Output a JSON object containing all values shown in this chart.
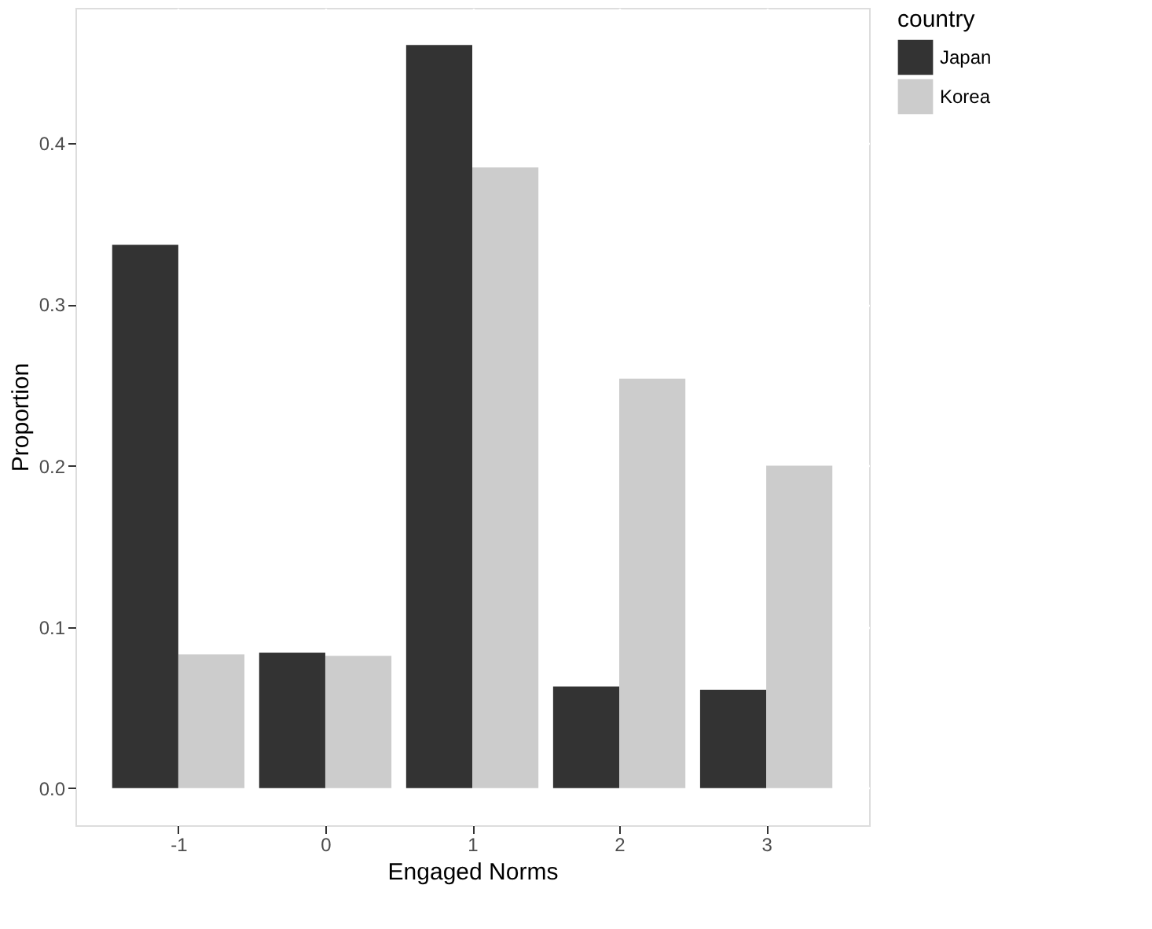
{
  "chart_data": {
    "type": "bar",
    "xlabel": "Engaged Norms",
    "ylabel": "Proportion",
    "legend_title": "country",
    "x": [
      -1,
      0,
      1,
      2,
      3
    ],
    "series": [
      {
        "name": "Japan",
        "color": "#333333",
        "values": [
          0.337,
          0.084,
          0.461,
          0.063,
          0.061
        ]
      },
      {
        "name": "Korea",
        "color": "#cccccc",
        "values": [
          0.083,
          0.082,
          0.385,
          0.254,
          0.2
        ]
      }
    ],
    "xlim": [
      -1.7,
      3.7
    ],
    "xticks": [
      -1,
      0,
      1,
      2,
      3
    ],
    "ylim": [
      -0.023,
      0.484
    ],
    "yticks": [
      {
        "value": 0,
        "label": "0.0"
      },
      0.1,
      0.2,
      0.3,
      0.4
    ],
    "grid": true,
    "legend": "right"
  }
}
